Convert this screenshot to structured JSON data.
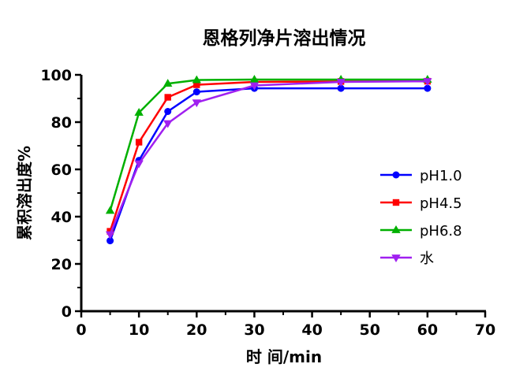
{
  "chart_data": {
    "type": "line",
    "title": "恩格列净片溶出情况",
    "xlabel": "时 间/min",
    "ylabel": "累积溶出度%",
    "xlim": [
      0,
      70
    ],
    "ylim": [
      0,
      100
    ],
    "x_ticks": [
      "0",
      "10",
      "20",
      "30",
      "40",
      "50",
      "60",
      "70"
    ],
    "y_ticks": [
      "0",
      "20",
      "40",
      "60",
      "80",
      "100"
    ],
    "x": [
      5,
      10,
      15,
      20,
      30,
      45,
      60
    ],
    "grid": false,
    "legend_position": "right",
    "series": [
      {
        "name": "pH1.0",
        "color": "#0000ff",
        "marker": "circle",
        "values": [
          29.8,
          63.8,
          84.5,
          92.8,
          94.3,
          94.3,
          94.3
        ]
      },
      {
        "name": "pH4.5",
        "color": "#ff0000",
        "marker": "square",
        "values": [
          33.8,
          71.5,
          90.5,
          95.8,
          97.0,
          97.2,
          97.3
        ]
      },
      {
        "name": "pH6.8",
        "color": "#00b000",
        "marker": "triangle-up",
        "values": [
          42.5,
          84.0,
          96.3,
          97.8,
          98.0,
          98.0,
          98.0
        ]
      },
      {
        "name": "水",
        "color": "#a020f0",
        "marker": "triangle-down",
        "values": [
          32.5,
          62.5,
          79.5,
          88.3,
          95.5,
          97.0,
          97.3
        ]
      }
    ]
  }
}
